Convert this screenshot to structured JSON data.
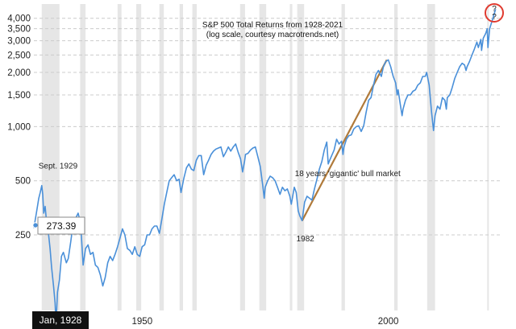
{
  "chart_data": {
    "type": "line",
    "title": "S&P 500 Total Returns from 1928-2021",
    "subtitle": "(log scale, courtesy macrotrends.net)",
    "y_scale": "log",
    "ylim": [
      95,
      4800
    ],
    "xlim": [
      1928,
      2023
    ],
    "y_ticks": [
      {
        "value": 250,
        "label": "250"
      },
      {
        "value": 500,
        "label": "500"
      },
      {
        "value": 1000,
        "label": "1,000"
      },
      {
        "value": 1500,
        "label": "1,500"
      },
      {
        "value": 2000,
        "label": "2,000"
      },
      {
        "value": 2500,
        "label": "2,500"
      },
      {
        "value": 3000,
        "label": "3,000"
      },
      {
        "value": 3500,
        "label": "3,500"
      },
      {
        "value": 4000,
        "label": "4,000"
      }
    ],
    "x_ticks": [
      {
        "value": 1950,
        "label": "1950"
      },
      {
        "value": 2000,
        "label": "2000"
      }
    ],
    "grid": "horizontal dashed",
    "recessions": [
      [
        1929.6,
        1933.2
      ],
      [
        1937.4,
        1938.5
      ],
      [
        1945.0,
        1945.8
      ],
      [
        1948.8,
        1949.8
      ],
      [
        1953.5,
        1954.4
      ],
      [
        1957.6,
        1958.3
      ],
      [
        1960.2,
        1961.1
      ],
      [
        1969.9,
        1970.9
      ],
      [
        1973.8,
        1975.2
      ],
      [
        1980.0,
        1980.5
      ],
      [
        1981.5,
        1982.9
      ],
      [
        1990.5,
        1991.2
      ],
      [
        2001.2,
        2001.9
      ],
      [
        2007.9,
        2009.5
      ],
      [
        2020.1,
        2020.4
      ]
    ],
    "series": [
      {
        "color": "#4a90d9",
        "points": [
          [
            1928.0,
            273
          ],
          [
            1928.5,
            330
          ],
          [
            1929.0,
            400
          ],
          [
            1929.3,
            430
          ],
          [
            1929.6,
            470
          ],
          [
            1929.8,
            420
          ],
          [
            1930.0,
            330
          ],
          [
            1930.3,
            360
          ],
          [
            1930.6,
            290
          ],
          [
            1931.0,
            250
          ],
          [
            1931.3,
            210
          ],
          [
            1931.6,
            165
          ],
          [
            1932.0,
            130
          ],
          [
            1932.3,
            105
          ],
          [
            1932.5,
            80
          ],
          [
            1932.8,
            120
          ],
          [
            1933.2,
            140
          ],
          [
            1933.6,
            190
          ],
          [
            1934.0,
            200
          ],
          [
            1934.6,
            175
          ],
          [
            1935.0,
            185
          ],
          [
            1935.5,
            230
          ],
          [
            1936.0,
            290
          ],
          [
            1937.0,
            330
          ],
          [
            1937.5,
            290
          ],
          [
            1938.0,
            170
          ],
          [
            1938.5,
            210
          ],
          [
            1939.0,
            220
          ],
          [
            1939.5,
            195
          ],
          [
            1940.0,
            200
          ],
          [
            1940.5,
            170
          ],
          [
            1941.0,
            165
          ],
          [
            1941.5,
            150
          ],
          [
            1942.0,
            130
          ],
          [
            1942.5,
            145
          ],
          [
            1943.0,
            175
          ],
          [
            1943.5,
            190
          ],
          [
            1944.0,
            180
          ],
          [
            1944.5,
            195
          ],
          [
            1945.0,
            215
          ],
          [
            1945.5,
            240
          ],
          [
            1946.0,
            270
          ],
          [
            1946.5,
            250
          ],
          [
            1947.0,
            210
          ],
          [
            1947.5,
            205
          ],
          [
            1948.0,
            195
          ],
          [
            1948.5,
            215
          ],
          [
            1949.0,
            195
          ],
          [
            1949.5,
            190
          ],
          [
            1950.0,
            215
          ],
          [
            1950.5,
            220
          ],
          [
            1951.0,
            250
          ],
          [
            1951.5,
            250
          ],
          [
            1952.0,
            270
          ],
          [
            1952.5,
            280
          ],
          [
            1953.0,
            280
          ],
          [
            1953.5,
            255
          ],
          [
            1954.0,
            305
          ],
          [
            1954.5,
            370
          ],
          [
            1955.0,
            430
          ],
          [
            1955.5,
            500
          ],
          [
            1956.0,
            520
          ],
          [
            1956.5,
            540
          ],
          [
            1957.0,
            500
          ],
          [
            1957.5,
            510
          ],
          [
            1957.9,
            430
          ],
          [
            1958.5,
            520
          ],
          [
            1959.0,
            590
          ],
          [
            1959.5,
            620
          ],
          [
            1960.0,
            580
          ],
          [
            1960.5,
            570
          ],
          [
            1961.0,
            650
          ],
          [
            1961.5,
            690
          ],
          [
            1962.0,
            690
          ],
          [
            1962.5,
            540
          ],
          [
            1963.0,
            610
          ],
          [
            1963.5,
            650
          ],
          [
            1964.0,
            700
          ],
          [
            1964.5,
            730
          ],
          [
            1965.0,
            750
          ],
          [
            1965.5,
            760
          ],
          [
            1966.0,
            770
          ],
          [
            1966.5,
            680
          ],
          [
            1967.0,
            720
          ],
          [
            1967.5,
            770
          ],
          [
            1968.0,
            730
          ],
          [
            1968.5,
            770
          ],
          [
            1969.0,
            800
          ],
          [
            1969.5,
            720
          ],
          [
            1970.0,
            660
          ],
          [
            1970.4,
            560
          ],
          [
            1970.8,
            640
          ],
          [
            1971.0,
            700
          ],
          [
            1971.5,
            710
          ],
          [
            1972.0,
            740
          ],
          [
            1972.5,
            760
          ],
          [
            1973.0,
            770
          ],
          [
            1973.5,
            680
          ],
          [
            1974.0,
            600
          ],
          [
            1974.5,
            470
          ],
          [
            1974.8,
            400
          ],
          [
            1975.0,
            460
          ],
          [
            1975.5,
            500
          ],
          [
            1976.0,
            530
          ],
          [
            1976.5,
            520
          ],
          [
            1977.0,
            500
          ],
          [
            1977.5,
            460
          ],
          [
            1978.0,
            420
          ],
          [
            1978.5,
            460
          ],
          [
            1979.0,
            440
          ],
          [
            1979.5,
            450
          ],
          [
            1980.0,
            410
          ],
          [
            1980.3,
            370
          ],
          [
            1980.9,
            460
          ],
          [
            1981.3,
            430
          ],
          [
            1981.7,
            340
          ],
          [
            1982.0,
            320
          ],
          [
            1982.5,
            300
          ],
          [
            1983.0,
            380
          ],
          [
            1983.5,
            410
          ],
          [
            1984.0,
            400
          ],
          [
            1984.5,
            390
          ],
          [
            1985.0,
            450
          ],
          [
            1985.5,
            510
          ],
          [
            1986.0,
            580
          ],
          [
            1986.5,
            640
          ],
          [
            1987.0,
            740
          ],
          [
            1987.5,
            820
          ],
          [
            1987.8,
            620
          ],
          [
            1988.0,
            640
          ],
          [
            1988.5,
            690
          ],
          [
            1989.0,
            740
          ],
          [
            1989.5,
            850
          ],
          [
            1990.0,
            800
          ],
          [
            1990.5,
            830
          ],
          [
            1990.8,
            700
          ],
          [
            1991.0,
            770
          ],
          [
            1991.5,
            850
          ],
          [
            1992.0,
            890
          ],
          [
            1992.5,
            900
          ],
          [
            1993.0,
            970
          ],
          [
            1993.5,
            1000
          ],
          [
            1994.0,
            1010
          ],
          [
            1994.5,
            940
          ],
          [
            1995.0,
            1010
          ],
          [
            1995.5,
            1200
          ],
          [
            1996.0,
            1400
          ],
          [
            1996.5,
            1450
          ],
          [
            1997.0,
            1700
          ],
          [
            1997.5,
            1950
          ],
          [
            1998.0,
            2050
          ],
          [
            1998.6,
            1900
          ],
          [
            1999.0,
            2150
          ],
          [
            1999.5,
            2300
          ],
          [
            2000.0,
            2350
          ],
          [
            2000.5,
            2150
          ],
          [
            2001.0,
            1900
          ],
          [
            2001.5,
            1750
          ],
          [
            2001.8,
            1500
          ],
          [
            2002.0,
            1600
          ],
          [
            2002.5,
            1300
          ],
          [
            2002.8,
            1150
          ],
          [
            2003.0,
            1250
          ],
          [
            2003.5,
            1400
          ],
          [
            2004.0,
            1500
          ],
          [
            2004.5,
            1500
          ],
          [
            2005.0,
            1570
          ],
          [
            2005.5,
            1600
          ],
          [
            2006.0,
            1700
          ],
          [
            2006.5,
            1750
          ],
          [
            2007.0,
            1900
          ],
          [
            2007.5,
            1900
          ],
          [
            2007.8,
            2000
          ],
          [
            2008.3,
            1700
          ],
          [
            2008.8,
            1200
          ],
          [
            2009.2,
            950
          ],
          [
            2009.5,
            1150
          ],
          [
            2010.0,
            1300
          ],
          [
            2010.5,
            1250
          ],
          [
            2011.0,
            1450
          ],
          [
            2011.5,
            1400
          ],
          [
            2011.8,
            1250
          ],
          [
            2012.0,
            1450
          ],
          [
            2012.5,
            1500
          ],
          [
            2013.0,
            1650
          ],
          [
            2013.5,
            1850
          ],
          [
            2014.0,
            2000
          ],
          [
            2014.5,
            2150
          ],
          [
            2015.0,
            2250
          ],
          [
            2015.5,
            2200
          ],
          [
            2015.8,
            2050
          ],
          [
            2016.0,
            2150
          ],
          [
            2016.5,
            2300
          ],
          [
            2017.0,
            2500
          ],
          [
            2017.5,
            2700
          ],
          [
            2018.0,
            2950
          ],
          [
            2018.3,
            2750
          ],
          [
            2018.8,
            3050
          ],
          [
            2018.95,
            2650
          ],
          [
            2019.3,
            3100
          ],
          [
            2019.8,
            3300
          ],
          [
            2020.1,
            3500
          ],
          [
            2020.25,
            2750
          ],
          [
            2020.6,
            3500
          ],
          [
            2021.0,
            3800
          ],
          [
            2021.5,
            4200
          ],
          [
            2021.8,
            4500
          ]
        ]
      }
    ],
    "trend_line": {
      "from": [
        1982.5,
        300
      ],
      "to": [
        1999.7,
        2350
      ],
      "color": "#b07a3a"
    },
    "annotations": [
      {
        "text": "Sept. 1929",
        "x": 1929.6,
        "y": 560
      },
      {
        "text": "18 years 'gigantic' bull market",
        "x": 1987.5,
        "y": 520
      },
      {
        "text": "1982",
        "x": 1982.5,
        "y": 245
      },
      {
        "text": "?",
        "x": 2021.8,
        "y": 4300
      }
    ],
    "tooltip": {
      "value": "273.39",
      "date": "Jan, 1928"
    }
  }
}
